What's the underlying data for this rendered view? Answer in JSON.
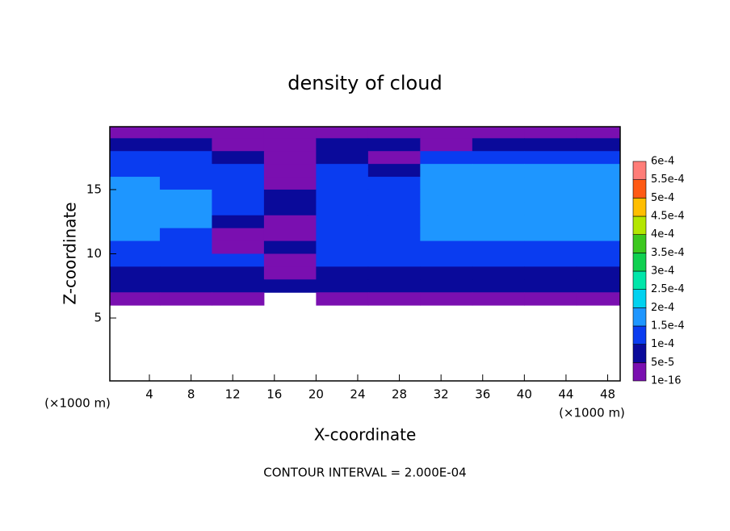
{
  "chart_data": {
    "type": "contour",
    "title": "density of cloud",
    "x_label": "X-coordinate",
    "y_label": "Z-coordinate",
    "x_unit": "(×1000 m)",
    "y_unit": "(×1000 m)",
    "note": "CONTOUR INTERVAL = 2.000E-04",
    "xlim": [
      0.2,
      49.2
    ],
    "ylim": [
      0.1,
      19.9
    ],
    "xticks": [
      4,
      8,
      12,
      16,
      20,
      24,
      28,
      32,
      36,
      40,
      44,
      48
    ],
    "yticks": [
      5,
      10,
      15
    ],
    "x": [
      2.5,
      7.5,
      12.5,
      17.5,
      22.5,
      27.5,
      32.5,
      37.5,
      42.5,
      47.5
    ],
    "y": [
      19.5,
      18.5,
      17.5,
      16.5,
      15.5,
      14.5,
      13.5,
      12.5,
      11.5,
      10.5,
      9.5,
      8.5,
      7.5,
      6.5
    ],
    "z": [
      [
        3e-05,
        3e-05,
        3e-05,
        3e-05,
        3e-05,
        3e-05,
        3e-05,
        3e-05,
        3e-05,
        3e-05
      ],
      [
        8e-05,
        8e-05,
        3e-05,
        3e-05,
        8e-05,
        8e-05,
        3e-05,
        8e-05,
        8e-05,
        8e-05
      ],
      [
        0.00012,
        0.00011,
        8e-05,
        3e-05,
        8e-05,
        3e-05,
        0.00013,
        0.00013,
        0.00013,
        0.00013
      ],
      [
        0.00014,
        0.00012,
        0.00011,
        3e-05,
        0.00011,
        8e-05,
        0.00015,
        0.00016,
        0.00016,
        0.00015
      ],
      [
        0.00016,
        0.00014,
        0.00012,
        3e-05,
        0.00012,
        0.00011,
        0.00016,
        0.00017,
        0.00017,
        0.00016
      ],
      [
        0.00017,
        0.00016,
        0.00012,
        8e-05,
        0.00012,
        0.00011,
        0.00017,
        0.00017,
        0.00017,
        0.00017
      ],
      [
        0.00017,
        0.00016,
        0.00011,
        8e-05,
        0.00013,
        0.00012,
        0.00017,
        0.00017,
        0.00017,
        0.00017
      ],
      [
        0.00016,
        0.00016,
        8e-05,
        3e-05,
        0.00013,
        0.00012,
        0.00016,
        0.00017,
        0.00017,
        0.00016
      ],
      [
        0.00015,
        0.00014,
        3e-05,
        3e-05,
        0.00012,
        0.00011,
        0.00015,
        0.00015,
        0.00015,
        0.00015
      ],
      [
        0.00013,
        0.00012,
        3e-05,
        8e-05,
        0.00011,
        0.00011,
        0.00013,
        0.00013,
        0.00013,
        0.00013
      ],
      [
        0.00011,
        0.00011,
        0.0001,
        3e-05,
        0.00011,
        0.00011,
        0.00011,
        0.00011,
        0.00011,
        0.00011
      ],
      [
        8e-05,
        8e-05,
        8e-05,
        3e-05,
        8e-05,
        8e-05,
        8e-05,
        8e-05,
        8e-05,
        8e-05
      ],
      [
        6e-05,
        6e-05,
        6e-05,
        6e-05,
        6e-05,
        6e-05,
        6e-05,
        6e-05,
        6e-05,
        6e-05
      ],
      [
        3e-05,
        3e-05,
        3e-05,
        null,
        3e-05,
        3e-05,
        3e-05,
        3e-05,
        3e-05,
        3e-05
      ]
    ],
    "colorbar": {
      "levels": [
        {
          "value": 1e-16,
          "label": "1e-16"
        },
        {
          "value": 5e-05,
          "label": "5e-5"
        },
        {
          "value": 0.0001,
          "label": "1e-4"
        },
        {
          "value": 0.00015,
          "label": "1.5e-4"
        },
        {
          "value": 0.0002,
          "label": "2e-4"
        },
        {
          "value": 0.00025,
          "label": "2.5e-4"
        },
        {
          "value": 0.0003,
          "label": "3e-4"
        },
        {
          "value": 0.00035,
          "label": "3.5e-4"
        },
        {
          "value": 0.0004,
          "label": "4e-4"
        },
        {
          "value": 0.00045,
          "label": "4.5e-4"
        },
        {
          "value": 0.0005,
          "label": "5e-4"
        },
        {
          "value": 0.00055,
          "label": "5.5e-4"
        },
        {
          "value": 0.0006,
          "label": "6e-4"
        }
      ],
      "colors": [
        "#7a0fb0",
        "#0a0a9a",
        "#0a3cf0",
        "#1e96ff",
        "#00d2f0",
        "#00e6aa",
        "#10d050",
        "#3cc81e",
        "#b4e600",
        "#ffbe00",
        "#ff5a14",
        "#ff7d78"
      ]
    }
  }
}
